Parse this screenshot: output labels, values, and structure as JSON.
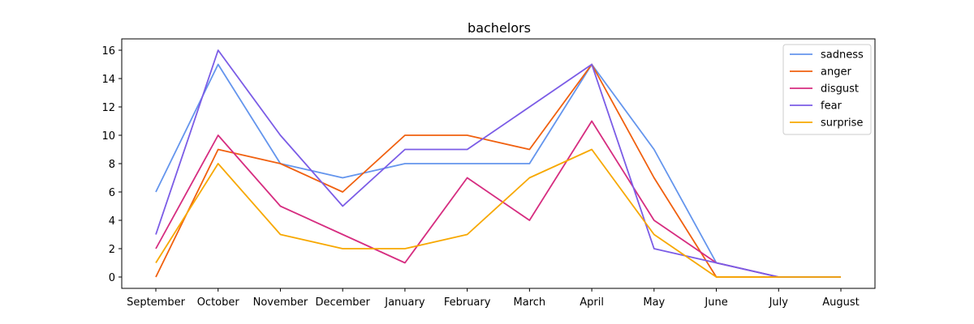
{
  "chart_data": {
    "type": "line",
    "title": "bachelors",
    "xlabel": "",
    "ylabel": "",
    "categories": [
      "September",
      "October",
      "November",
      "December",
      "January",
      "February",
      "March",
      "April",
      "May",
      "June",
      "July",
      "August"
    ],
    "ylim": [
      -0.8,
      16.8
    ],
    "yticks": [
      0,
      2,
      4,
      6,
      8,
      10,
      12,
      14,
      16
    ],
    "grid": false,
    "legend_position": "top-right",
    "series": [
      {
        "name": "sadness",
        "color": "#6495ed",
        "values": [
          6,
          15,
          8,
          7,
          8,
          8,
          8,
          15,
          9,
          1,
          0,
          0
        ]
      },
      {
        "name": "anger",
        "color": "#f0600f",
        "values": [
          0,
          9,
          8,
          6,
          10,
          10,
          9,
          15,
          7,
          0,
          0,
          0
        ]
      },
      {
        "name": "disgust",
        "color": "#d62d80",
        "values": [
          2,
          10,
          5,
          3,
          1,
          7,
          4,
          11,
          4,
          1,
          0,
          0
        ]
      },
      {
        "name": "fear",
        "color": "#7b5ce6",
        "values": [
          3,
          16,
          10,
          5,
          9,
          9,
          12,
          15,
          2,
          1,
          0,
          0
        ]
      },
      {
        "name": "surprise",
        "color": "#f7a800",
        "values": [
          1,
          8,
          3,
          2,
          2,
          3,
          7,
          9,
          3,
          0,
          0,
          0
        ]
      }
    ]
  }
}
